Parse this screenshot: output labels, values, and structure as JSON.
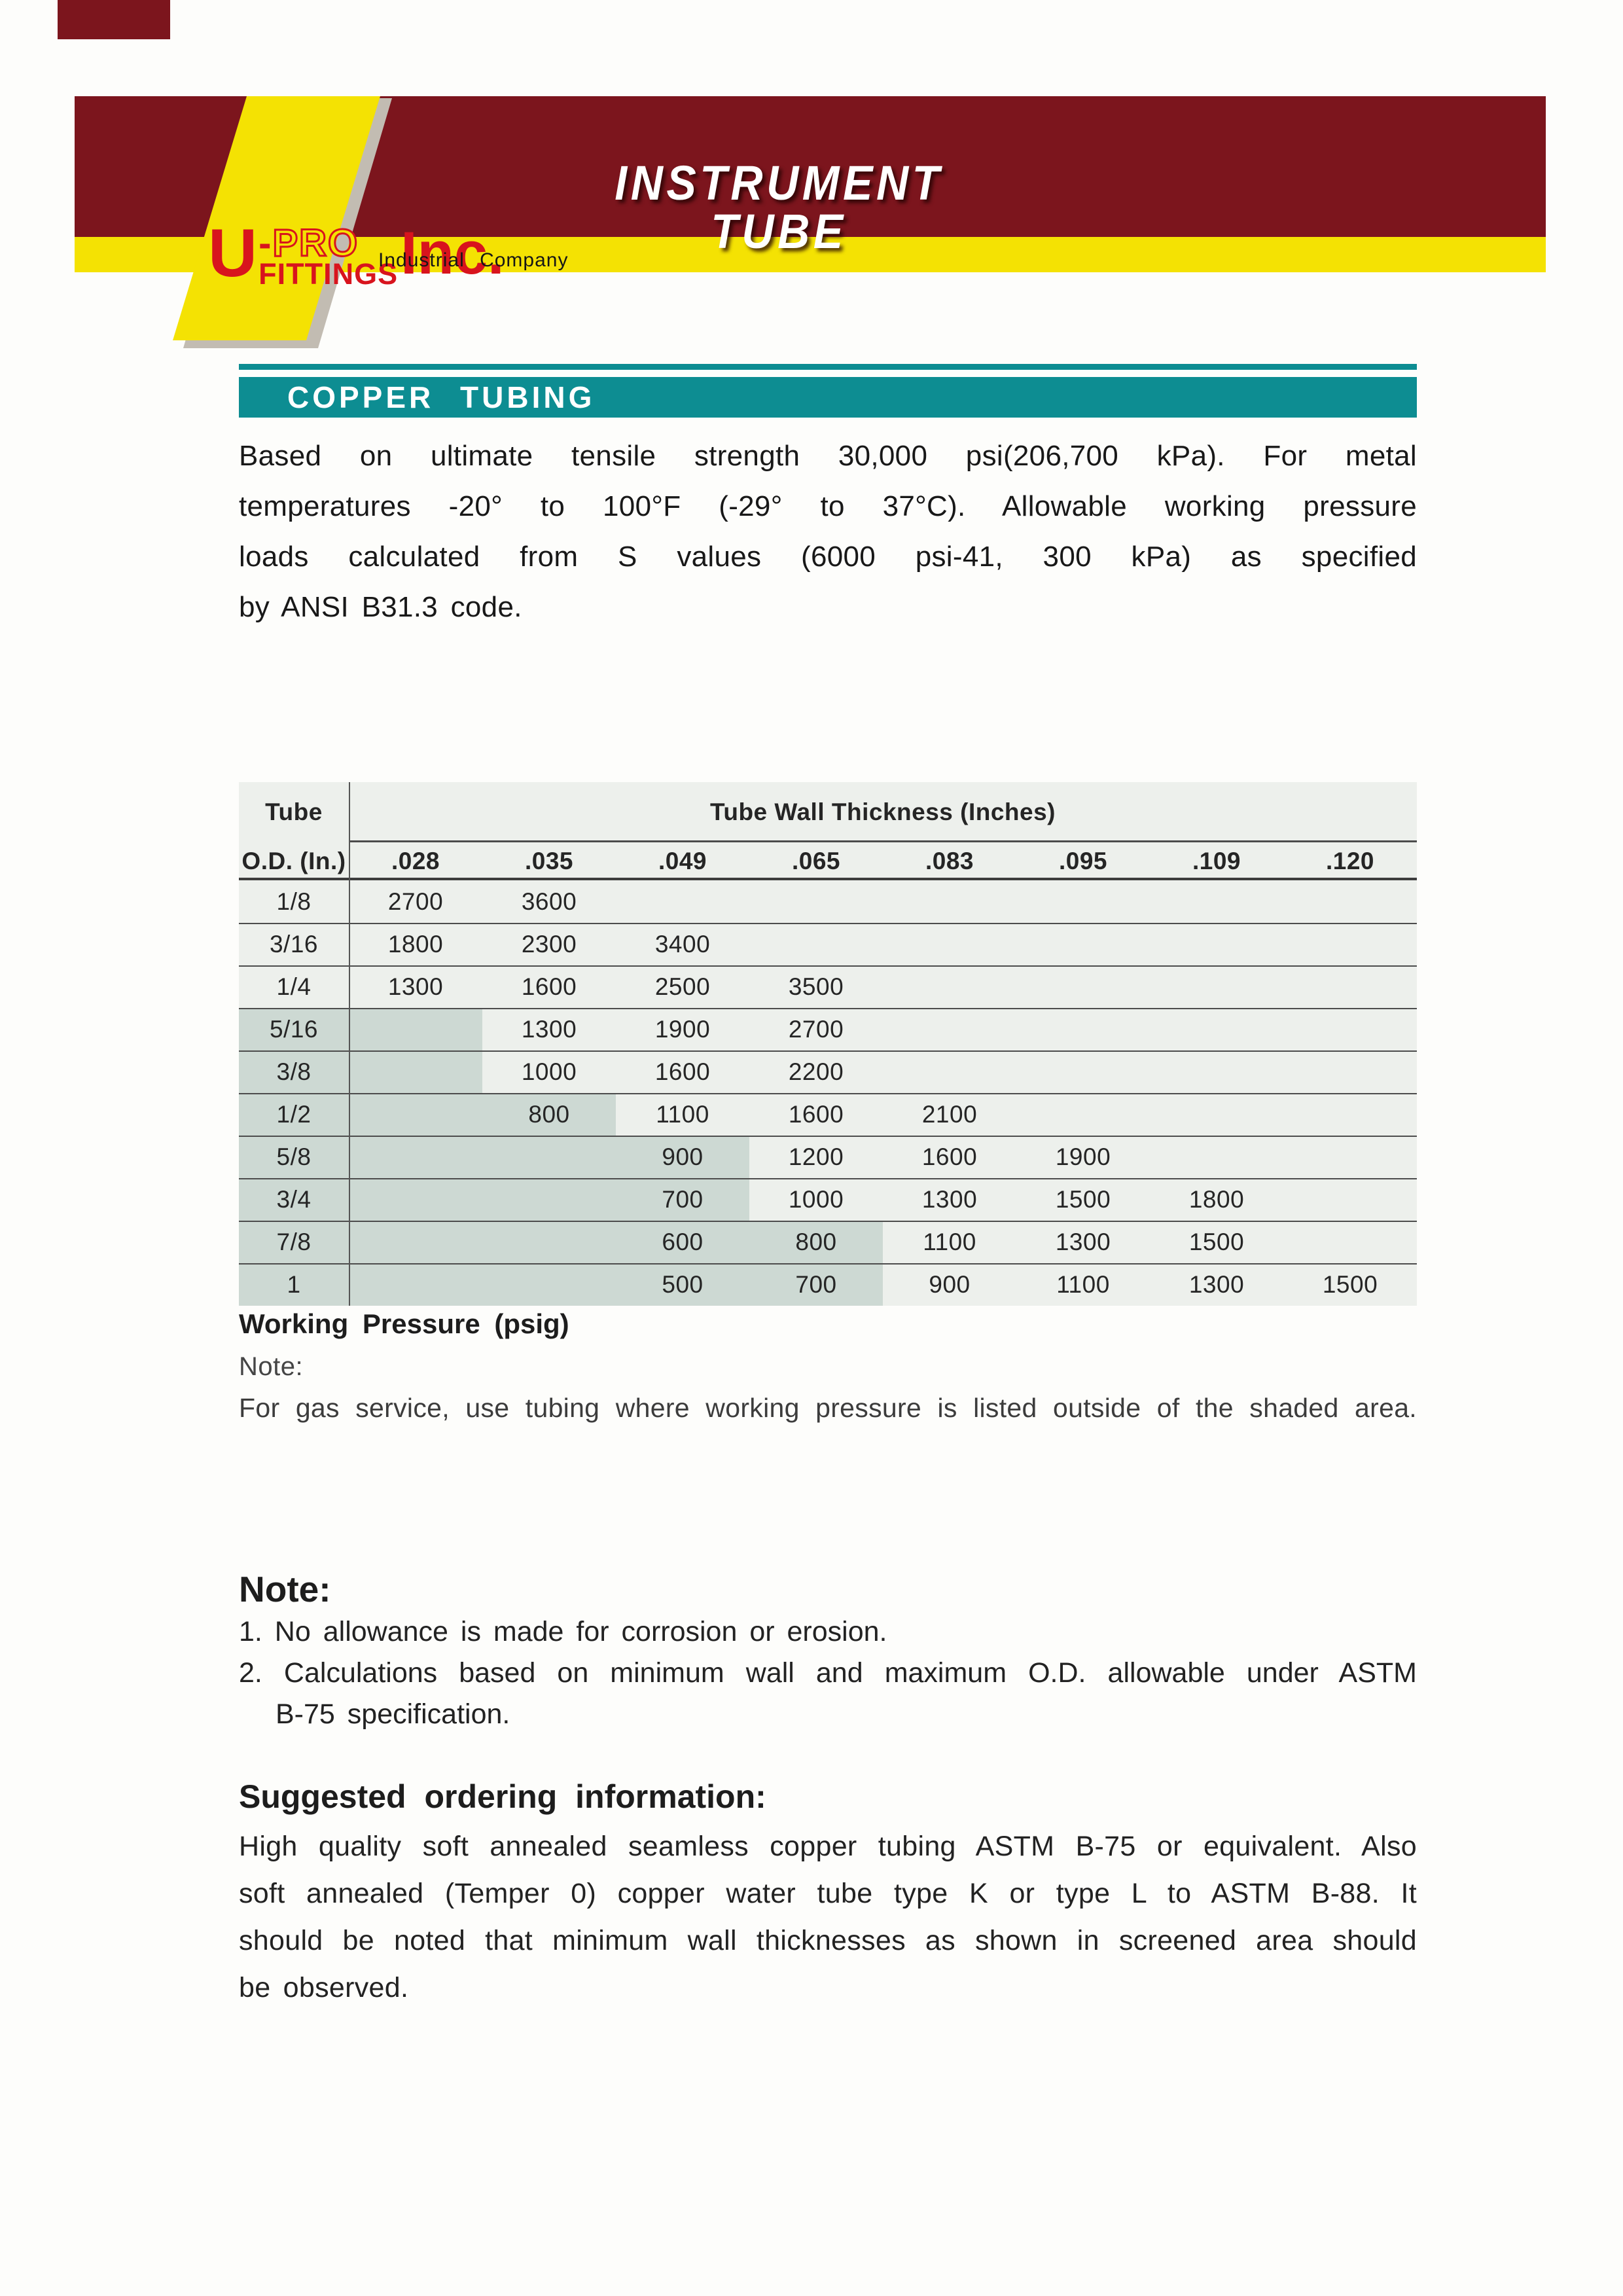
{
  "colors": {
    "maroon": "#7c151d",
    "yellow": "#f4e203",
    "teal": "#0d8d92",
    "logo_red": "#d8141d",
    "table_bg": "#edf0ec",
    "table_shade": "#cdd9d3",
    "stripe_shadow": "#c2bcb2",
    "ink": "#1d1d1d"
  },
  "header": {
    "title": "INSTRUMENT TUBE",
    "logo": {
      "u": "U",
      "hyphen": "-",
      "pro": "PRO",
      "fittings": "FITTINGS",
      "inc": "Inc."
    },
    "tagline": "Industrial Company"
  },
  "section": {
    "title": "COPPER TUBING"
  },
  "intro": {
    "lines": [
      "Based on ultimate tensile strength 30,000 psi(206,700 kPa). For metal",
      "temperatures -20° to 100°F (-29° to 37°C). Allowable working pressure",
      "loads calculated from S values (6000 psi-41, 300 kPa) as specified",
      "by ANSI B31.3 code."
    ]
  },
  "table": {
    "corner": [
      "Tube",
      "O.D. (In.)"
    ],
    "span_header": "Tube Wall Thickness (Inches)",
    "columns": [
      ".028",
      ".035",
      ".049",
      ".065",
      ".083",
      ".095",
      ".109",
      ".120"
    ],
    "rows": [
      {
        "od": "1/8",
        "values": [
          "2700",
          "3600",
          "",
          "",
          "",
          "",
          "",
          ""
        ],
        "shaded_through": -1
      },
      {
        "od": "3/16",
        "values": [
          "1800",
          "2300",
          "3400",
          "",
          "",
          "",
          "",
          ""
        ],
        "shaded_through": -1
      },
      {
        "od": "1/4",
        "values": [
          "1300",
          "1600",
          "2500",
          "3500",
          "",
          "",
          "",
          ""
        ],
        "shaded_through": -1
      },
      {
        "od": "5/16",
        "values": [
          "",
          "1300",
          "1900",
          "2700",
          "",
          "",
          "",
          ""
        ],
        "shaded_through": 0
      },
      {
        "od": "3/8",
        "values": [
          "",
          "1000",
          "1600",
          "2200",
          "",
          "",
          "",
          ""
        ],
        "shaded_through": 0
      },
      {
        "od": "1/2",
        "values": [
          "",
          "800",
          "1100",
          "1600",
          "2100",
          "",
          "",
          ""
        ],
        "shaded_through": 1
      },
      {
        "od": "5/8",
        "values": [
          "",
          "",
          "900",
          "1200",
          "1600",
          "1900",
          "",
          ""
        ],
        "shaded_through": 2
      },
      {
        "od": "3/4",
        "values": [
          "",
          "",
          "700",
          "1000",
          "1300",
          "1500",
          "1800",
          ""
        ],
        "shaded_through": 2
      },
      {
        "od": "7/8",
        "values": [
          "",
          "",
          "600",
          "800",
          "1100",
          "1300",
          "1500",
          ""
        ],
        "shaded_through": 3
      },
      {
        "od": "1",
        "values": [
          "",
          "",
          "500",
          "700",
          "900",
          "1100",
          "1300",
          "1500"
        ],
        "shaded_through": 3
      }
    ],
    "caption": "Working Pressure (psig)",
    "note_label": "Note:",
    "gas_note": "For gas service, use tubing where working pressure is listed outside of the shaded area."
  },
  "notes": {
    "heading": "Note:",
    "items": [
      [
        "1. No allowance is made for corrosion or erosion."
      ],
      [
        "2. Calculations based on minimum wall and maximum O.D. allowable under ASTM",
        "B-75 specification."
      ]
    ]
  },
  "ordering": {
    "heading": "Suggested ordering information:",
    "lines": [
      "High quality soft annealed seamless copper tubing ASTM B-75 or equivalent. Also",
      "soft annealed (Temper 0) copper water tube type K or type L to ASTM B-88. It",
      "should be noted that minimum wall thicknesses as shown in screened area should",
      "be observed."
    ]
  }
}
